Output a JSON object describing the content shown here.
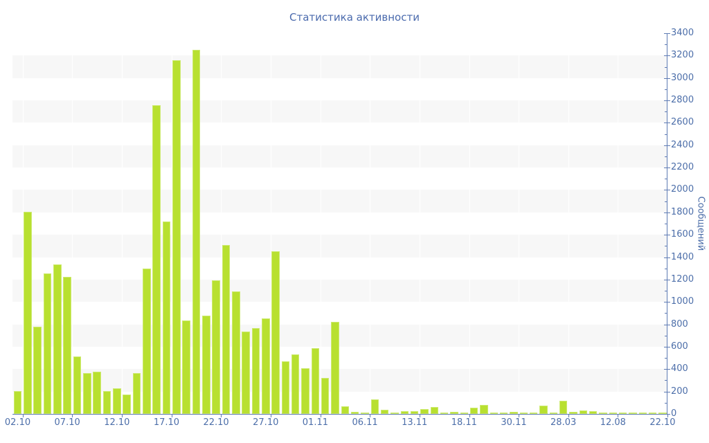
{
  "chart_data": {
    "type": "bar",
    "title": "Статистика активности",
    "ylabel": "Сообщений",
    "xlabel": "",
    "ylim": [
      0,
      3400
    ],
    "y_major_step": 200,
    "y_minor_step": 100,
    "grid": "alternating-horizontal-bands",
    "legend": "none",
    "n_bars": 66,
    "values": [
      205,
      1805,
      780,
      1255,
      1335,
      1225,
      510,
      365,
      375,
      205,
      230,
      170,
      365,
      1300,
      2760,
      1720,
      3160,
      835,
      3250,
      880,
      1190,
      1510,
      1095,
      735,
      765,
      850,
      1450,
      470,
      530,
      410,
      590,
      320,
      820,
      65,
      20,
      15,
      130,
      35,
      15,
      25,
      25,
      45,
      60,
      6,
      18,
      6,
      58,
      78,
      8,
      12,
      20,
      6,
      8,
      74,
      14,
      115,
      20,
      30,
      25,
      15,
      10,
      5,
      15,
      5,
      8,
      5
    ],
    "x_tick_label_every": 5,
    "x_tick_indices": [
      0,
      5,
      10,
      15,
      20,
      25,
      30,
      35,
      40,
      45,
      50,
      55,
      60,
      65
    ],
    "x_tick_labels": [
      "02.10",
      "07.10",
      "12.10",
      "17.10",
      "22.10",
      "27.10",
      "01.11",
      "06.11",
      "13.11",
      "18.11",
      "30.11",
      "28.03",
      "12.08",
      "22.10"
    ],
    "colors": {
      "bar_fill": "#b8e030",
      "bar_stroke": "#cdea70",
      "band": "#f7f7f7",
      "axis": "#5d7ab3",
      "labels": "#4c6ea9",
      "title": "#4a6aad",
      "background": "#ffffff"
    }
  }
}
